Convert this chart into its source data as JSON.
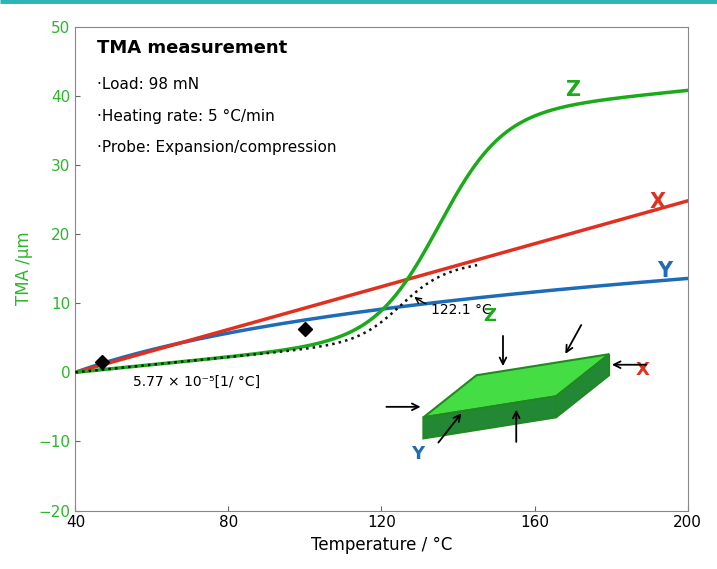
{
  "title": "TMA measurement",
  "xlabel": "Temperature / °C",
  "ylabel": "TMA /μm",
  "xlim": [
    40,
    200
  ],
  "ylim": [
    -20,
    50
  ],
  "xticks": [
    40,
    80,
    120,
    160,
    200
  ],
  "yticks": [
    -20,
    -10,
    0,
    10,
    20,
    30,
    40,
    50
  ],
  "bg_color": "#ffffff",
  "border_color": "#2bb5b8",
  "annotation_text1": "·Load: 98 mN",
  "annotation_text2": "·Heating rate: 5 °C/min",
  "annotation_text3": "·Probe: Expansion/compression",
  "axis_label_color": "#2db52d",
  "coeff_text": "5.77 × 10⁻⁵[1/ °C]",
  "temp_annotation": "122.1 °C",
  "diamond_points": [
    [
      47,
      1.5
    ],
    [
      100,
      6.2
    ]
  ],
  "curve_Z_color": "#1aaa1a",
  "curve_X_color": "#e03020",
  "curve_Y_color": "#1e6cb5",
  "curve_dashed_color": "#111111",
  "inset_face_color": "#33cc33",
  "inset_edge_color": "#228822",
  "inset_side_color": "#228833"
}
